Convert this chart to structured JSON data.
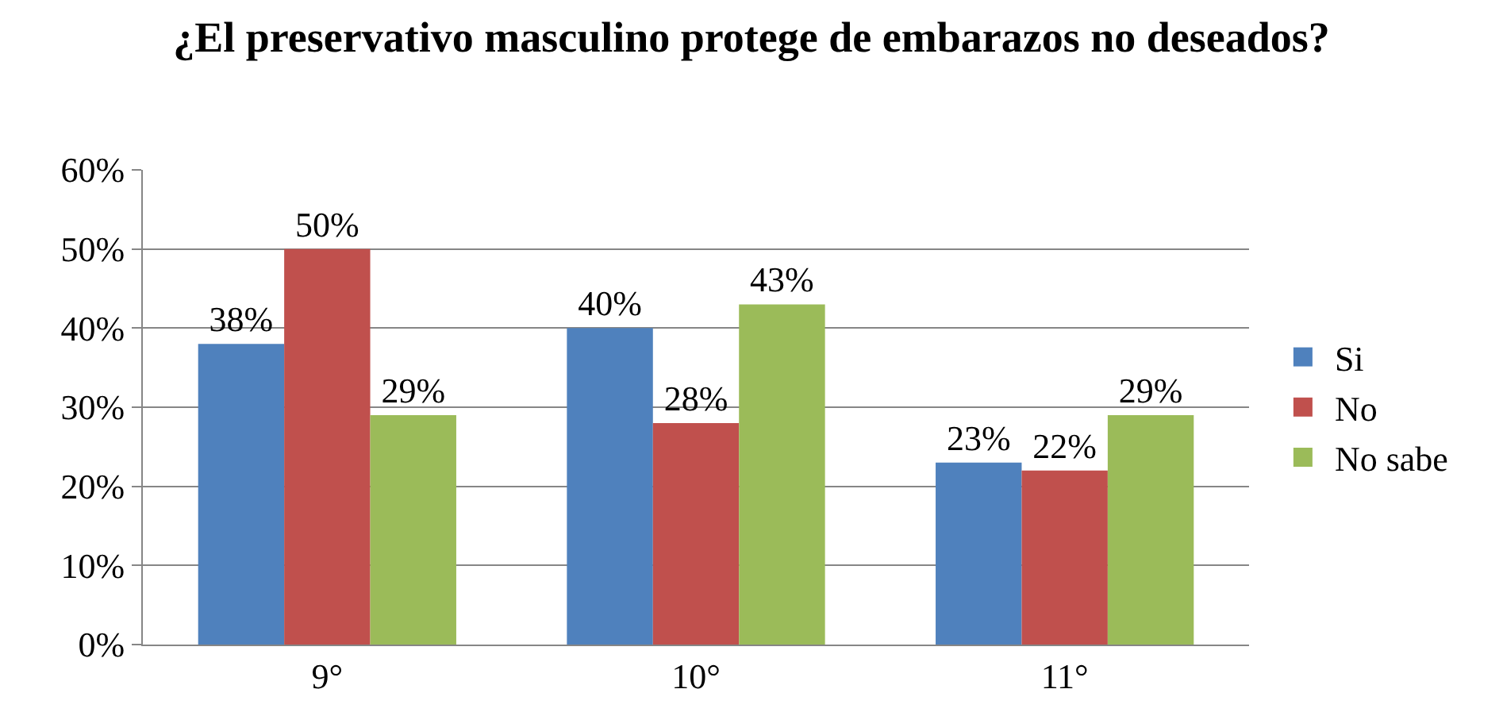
{
  "chart_data": {
    "type": "bar",
    "title": "¿El preservativo masculino protege de embarazos no deseados?",
    "categories": [
      "9°",
      "10°",
      "11°"
    ],
    "series": [
      {
        "name": "Si",
        "color": "#4f81bd",
        "values": [
          38,
          40,
          23
        ],
        "value_labels": [
          "38%",
          "40%",
          "23%"
        ]
      },
      {
        "name": "No",
        "color": "#c0504d",
        "values": [
          50,
          28,
          22
        ],
        "value_labels": [
          "50%",
          "28%",
          "22%"
        ]
      },
      {
        "name": "No sabe",
        "color": "#9bbb59",
        "values": [
          29,
          43,
          29
        ],
        "value_labels": [
          "29%",
          "43%",
          "29%"
        ]
      }
    ],
    "ylim": [
      0,
      60
    ],
    "yticks": [
      {
        "value": 0,
        "label": "0%"
      },
      {
        "value": 10,
        "label": "10%"
      },
      {
        "value": 20,
        "label": "20%"
      },
      {
        "value": 30,
        "label": "30%"
      },
      {
        "value": 40,
        "label": "40%"
      },
      {
        "value": 50,
        "label": "50%"
      },
      {
        "value": 60,
        "label": "60%"
      }
    ],
    "grid": "y",
    "legend": "right"
  }
}
